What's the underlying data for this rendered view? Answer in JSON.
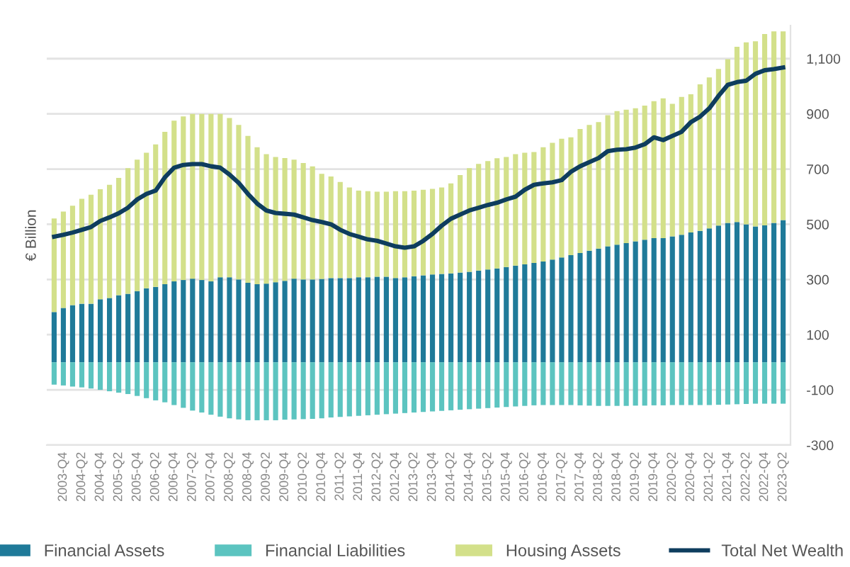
{
  "chart_data": {
    "type": "bar",
    "stacked": true,
    "ylabel": "€ Billion",
    "categories": [
      null,
      "2003-Q4",
      null,
      "2004-Q2",
      null,
      "2004-Q4",
      null,
      "2005-Q2",
      null,
      "2005-Q4",
      null,
      "2006-Q2",
      null,
      "2006-Q4",
      null,
      "2007-Q2",
      null,
      "2007-Q4",
      null,
      "2008-Q2",
      null,
      "2008-Q4",
      null,
      "2009-Q2",
      null,
      "2009-Q4",
      null,
      "2010-Q2",
      null,
      "2010-Q4",
      null,
      "2011-Q2",
      null,
      "2011-Q4",
      null,
      "2012-Q2",
      null,
      "2012-Q4",
      null,
      "2013-Q2",
      null,
      "2013-Q4",
      null,
      "2014-Q2",
      null,
      "2014-Q4",
      null,
      "2015-Q2",
      null,
      "2015-Q4",
      null,
      "2016-Q2",
      null,
      "2016-Q4",
      null,
      "2017-Q2",
      null,
      "2017-Q4",
      null,
      "2018-Q2",
      null,
      "2018-Q4",
      null,
      "2019-Q2",
      null,
      "2019-Q4",
      null,
      "2020-Q2",
      null,
      "2020-Q4",
      null,
      "2021-Q2",
      null,
      "2021-Q4",
      null,
      "2022-Q2",
      null,
      "2022-Q4",
      null,
      "2023-Q2"
    ],
    "series": [
      {
        "name": "Financial Assets",
        "color": "#1f7a99",
        "values": [
          182,
          197,
          207,
          212,
          212,
          228,
          233,
          243,
          248,
          258,
          268,
          273,
          283,
          293,
          298,
          303,
          298,
          293,
          308,
          308,
          300,
          288,
          283,
          285,
          290,
          295,
          303,
          300,
          300,
          302,
          305,
          305,
          305,
          308,
          308,
          310,
          310,
          305,
          308,
          312,
          315,
          318,
          320,
          322,
          325,
          328,
          332,
          336,
          340,
          345,
          350,
          355,
          360,
          365,
          372,
          380,
          388,
          396,
          404,
          412,
          420,
          426,
          432,
          438,
          444,
          450,
          450,
          456,
          462,
          470,
          476,
          485,
          495,
          505,
          508,
          500,
          492,
          496,
          505,
          515
        ]
      },
      {
        "name": "Financial Liabilities",
        "color": "#5cc4c0",
        "values": [
          -81,
          -84,
          -88,
          -91,
          -95,
          -100,
          -105,
          -110,
          -115,
          -122,
          -130,
          -138,
          -145,
          -155,
          -165,
          -175,
          -182,
          -190,
          -197,
          -203,
          -207,
          -210,
          -210,
          -210,
          -210,
          -208,
          -207,
          -206,
          -205,
          -203,
          -200,
          -198,
          -196,
          -194,
          -192,
          -190,
          -188,
          -186,
          -184,
          -182,
          -180,
          -178,
          -176,
          -174,
          -172,
          -170,
          -168,
          -166,
          -164,
          -162,
          -160,
          -158,
          -156,
          -155,
          -155,
          -155,
          -155,
          -156,
          -157,
          -158,
          -158,
          -158,
          -158,
          -157,
          -157,
          -156,
          -156,
          -155,
          -155,
          -155,
          -155,
          -155,
          -154,
          -153,
          -152,
          -151,
          -150,
          -150,
          -150,
          -150
        ]
      },
      {
        "name": "Housing Assets",
        "color": "#d3e08a",
        "values": [
          339,
          349,
          360,
          380,
          395,
          399,
          410,
          425,
          455,
          476,
          491,
          516,
          552,
          582,
          593,
          597,
          602,
          607,
          592,
          577,
          560,
          532,
          496,
          469,
          454,
          445,
          431,
          422,
          410,
          381,
          368,
          348,
          328,
          314,
          312,
          308,
          308,
          315,
          312,
          310,
          310,
          310,
          313,
          326,
          353,
          375,
          387,
          393,
          399,
          399,
          404,
          404,
          402,
          414,
          423,
          430,
          427,
          449,
          456,
          458,
          475,
          484,
          483,
          482,
          486,
          496,
          506,
          480,
          499,
          501,
          531,
          547,
          568,
          593,
          635,
          659,
          671,
          693,
          694,
          684
        ]
      },
      {
        "name": "Total Net Wealth",
        "type": "line",
        "color": "#0e3d5e",
        "values": [
          455,
          462,
          470,
          480,
          490,
          512,
          525,
          540,
          560,
          590,
          610,
          622,
          670,
          705,
          715,
          718,
          718,
          710,
          705,
          680,
          650,
          610,
          575,
          550,
          541,
          538,
          535,
          525,
          515,
          508,
          500,
          480,
          465,
          455,
          445,
          440,
          430,
          420,
          415,
          420,
          440,
          465,
          495,
          520,
          535,
          550,
          560,
          570,
          578,
          590,
          600,
          625,
          643,
          648,
          652,
          660,
          690,
          710,
          725,
          740,
          765,
          770,
          772,
          778,
          790,
          815,
          805,
          820,
          835,
          870,
          890,
          920,
          965,
          1005,
          1015,
          1020,
          1045,
          1058,
          1062,
          1068
        ]
      }
    ],
    "ylim": [
      -300,
      1220
    ],
    "yticks": [
      -300,
      -100,
      100,
      300,
      500,
      700,
      900,
      {
        "value": 1100,
        "label": "1,100"
      }
    ],
    "grid": "y",
    "legend": "bottom",
    "marker": "none",
    "line_style": "solid"
  }
}
